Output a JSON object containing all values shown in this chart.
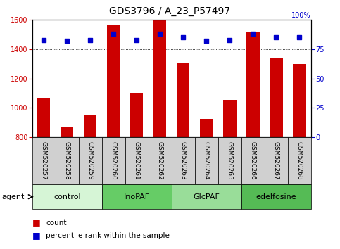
{
  "title": "GDS3796 / A_23_P57497",
  "samples": [
    "GSM520257",
    "GSM520258",
    "GSM520259",
    "GSM520260",
    "GSM520261",
    "GSM520262",
    "GSM520263",
    "GSM520264",
    "GSM520265",
    "GSM520266",
    "GSM520267",
    "GSM520268"
  ],
  "counts": [
    1068,
    865,
    950,
    1570,
    1100,
    1600,
    1310,
    925,
    1055,
    1515,
    1340,
    1300
  ],
  "percentiles": [
    83,
    82,
    83,
    88,
    83,
    88,
    85,
    82,
    83,
    88,
    85,
    85
  ],
  "ylim_left": [
    800,
    1600
  ],
  "ylim_right": [
    0,
    100
  ],
  "yticks_left": [
    800,
    1000,
    1200,
    1400,
    1600
  ],
  "yticks_right": [
    0,
    25,
    50,
    75
  ],
  "groups": [
    {
      "label": "control",
      "start": 0,
      "end": 3,
      "color": "#d6f5d6"
    },
    {
      "label": "InoPAF",
      "start": 3,
      "end": 6,
      "color": "#66cc66"
    },
    {
      "label": "GlcPAF",
      "start": 6,
      "end": 9,
      "color": "#99dd99"
    },
    {
      "label": "edelfosine",
      "start": 9,
      "end": 12,
      "color": "#55bb55"
    }
  ],
  "bar_color": "#cc0000",
  "dot_color": "#0000cc",
  "bar_width": 0.55,
  "background_left": "#d0d0d0",
  "title_fontsize": 10,
  "tick_fontsize": 7,
  "label_fontsize": 8,
  "sample_fontsize": 6.5
}
